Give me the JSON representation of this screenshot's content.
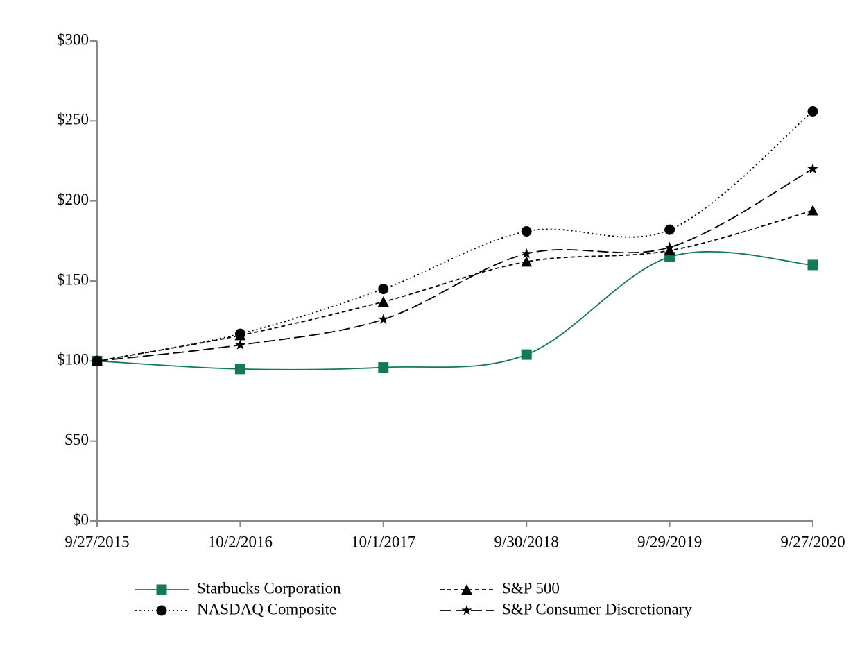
{
  "chart_data": {
    "type": "line",
    "categories": [
      "9/27/2015",
      "10/2/2016",
      "10/1/2017",
      "9/30/2018",
      "9/29/2019",
      "9/27/2020"
    ],
    "series": [
      {
        "name": "Starbucks Corporation",
        "color": "#137a52",
        "marker": "square",
        "line_style": "solid",
        "values": [
          100,
          95,
          96,
          104,
          165,
          160
        ]
      },
      {
        "name": "S&P 500",
        "color": "#000000",
        "marker": "triangle",
        "line_style": "dashed",
        "values": [
          100,
          116,
          137,
          162,
          169,
          194
        ]
      },
      {
        "name": "NASDAQ Composite",
        "color": "#000000",
        "marker": "circle",
        "line_style": "dotted",
        "values": [
          100,
          117,
          145,
          181,
          182,
          256
        ]
      },
      {
        "name": "S&P Consumer Discretionary",
        "color": "#000000",
        "marker": "star",
        "line_style": "longdash",
        "values": [
          100,
          110,
          126,
          167,
          171,
          220
        ]
      }
    ],
    "ylim": [
      0,
      300
    ],
    "yticks": [
      {
        "value": 0,
        "label": "$0"
      },
      {
        "value": 50,
        "label": "$50"
      },
      {
        "value": 100,
        "label": "$100"
      },
      {
        "value": 150,
        "label": "$150"
      },
      {
        "value": 200,
        "label": "$200"
      },
      {
        "value": 250,
        "label": "$250"
      },
      {
        "value": 300,
        "label": "$300"
      }
    ],
    "grid": false
  }
}
